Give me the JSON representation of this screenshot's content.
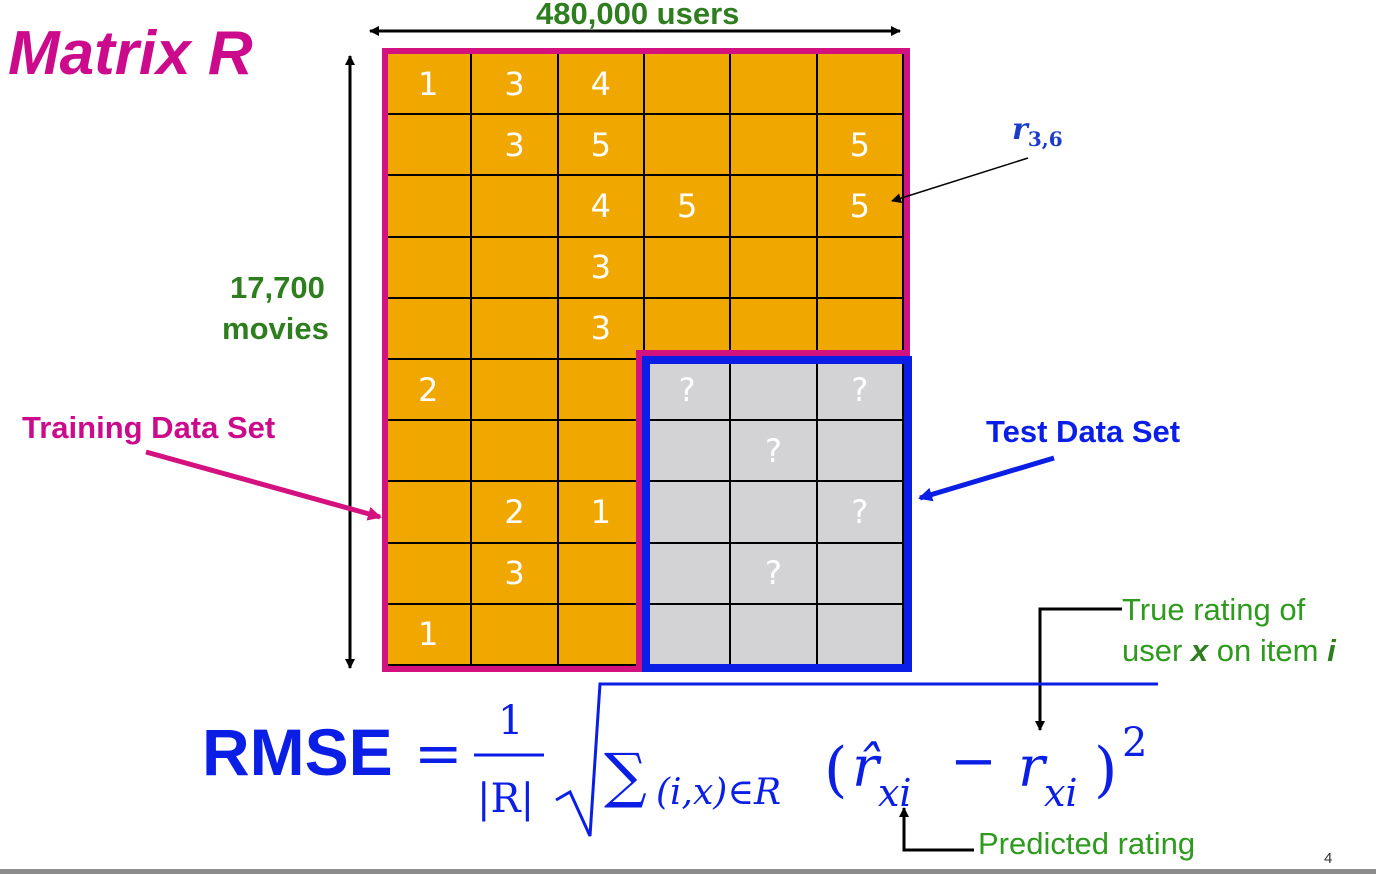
{
  "title": "Matrix R",
  "users_label": "480,000 users",
  "movies_label_line1": "17,700",
  "movies_label_line2": "movies",
  "training_label": "Training Data Set",
  "test_label": "Test Data Set",
  "element_label": {
    "base": "r",
    "subscript": "3,6"
  },
  "matrix": {
    "rows": [
      [
        "1",
        "3",
        "4",
        "",
        "",
        ""
      ],
      [
        "",
        "3",
        "5",
        "",
        "",
        "5"
      ],
      [
        "",
        "",
        "4",
        "5",
        "",
        "5"
      ],
      [
        "",
        "",
        "3",
        "",
        "",
        ""
      ],
      [
        "",
        "",
        "3",
        "",
        "",
        ""
      ],
      [
        "2",
        "",
        "",
        "?",
        "",
        "?"
      ],
      [
        "",
        "",
        "",
        "",
        "?",
        ""
      ],
      [
        "",
        "2",
        "1",
        "",
        "",
        "?"
      ],
      [
        "",
        "3",
        "",
        "",
        "?",
        ""
      ],
      [
        "1",
        "",
        "",
        "",
        "",
        ""
      ]
    ]
  },
  "true_rating_line1": "True rating of",
  "true_rating_line2": {
    "pre": "user ",
    "x": "x",
    "mid": " on item ",
    "i": "i"
  },
  "predicted_label": "Predicted rating",
  "formula": {
    "lhs": "RMSE",
    "equals": "=",
    "numerator": "1",
    "denominator": "|R|",
    "sum": "∑",
    "sum_sub": "(i,x)∈R",
    "open": "(",
    "rhat": "r̂",
    "sub_xi": "xi",
    "minus": "−",
    "r": "r",
    "close": ")",
    "power": "2"
  },
  "page_number": "4",
  "colors": {
    "training": "#d4127f",
    "test": "#0a1ee6",
    "cell_train": "#f0a800",
    "cell_test": "#d3d3d6",
    "label_green": "#2e7d1e"
  }
}
